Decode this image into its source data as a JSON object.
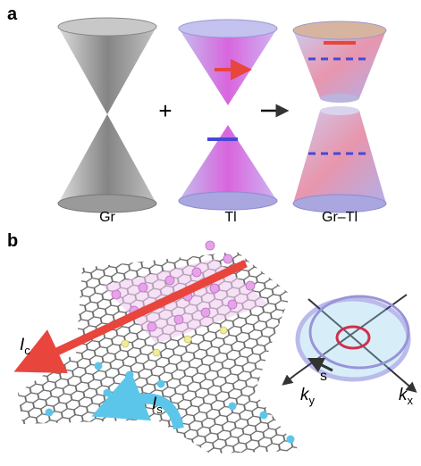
{
  "panel_a": {
    "label": "a",
    "cone_labels": [
      "Gr",
      "Tl",
      "Gr–Tl"
    ],
    "plus": "+"
  },
  "panel_b": {
    "label": "b",
    "current_charge": {
      "main": "I",
      "sub": "c"
    },
    "current_spin": {
      "main": "I",
      "sub": "s"
    },
    "spin": "s",
    "ky": {
      "main": "k",
      "sub": "y"
    },
    "kx": {
      "main": "k",
      "sub": "x"
    }
  }
}
